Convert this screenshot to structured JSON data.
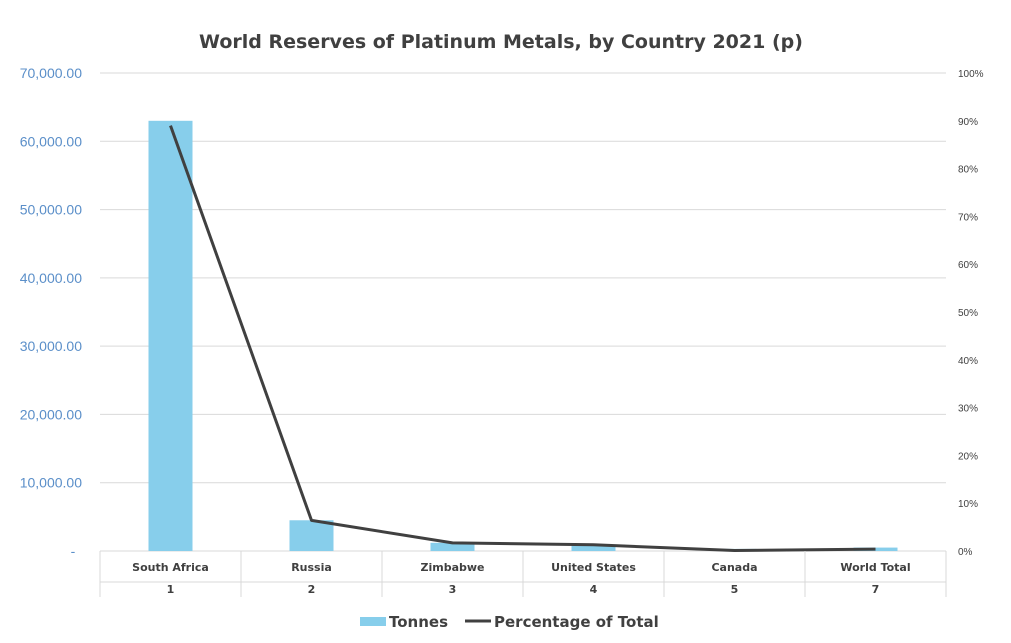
{
  "chart_data": {
    "type": "bar",
    "title": "World Reserves of Platinum Metals, by Country 2021 (p)",
    "categories": [
      "South Africa",
      "Russia",
      "Zimbabwe",
      "United States",
      "Canada",
      "World Total"
    ],
    "category_numbers": [
      "1",
      "2",
      "3",
      "4",
      "5",
      "7"
    ],
    "series": [
      {
        "name": "Tonnes",
        "type": "bar",
        "axis": "left",
        "color": "#87ceeb",
        "values": [
          63000,
          4500,
          1200,
          900,
          310,
          500
        ]
      },
      {
        "name": "Percentage of Total",
        "type": "line",
        "axis": "right",
        "color": "#404040",
        "values": [
          0.89,
          0.064,
          0.017,
          0.013,
          0.001,
          0.004
        ]
      }
    ],
    "y_left": {
      "ylim": [
        0,
        70000
      ],
      "ticks": [
        0,
        10000,
        20000,
        30000,
        40000,
        50000,
        60000,
        70000
      ],
      "tick_labels": [
        "-",
        "10,000.00",
        "20,000.00",
        "30,000.00",
        "40,000.00",
        "50,000.00",
        "60,000.00",
        "70,000.00"
      ]
    },
    "y_right": {
      "ylim": [
        0,
        1
      ],
      "ticks": [
        0,
        0.1,
        0.2,
        0.3,
        0.4,
        0.5,
        0.6,
        0.7,
        0.8,
        0.9,
        1.0
      ],
      "tick_labels": [
        "0%",
        "10%",
        "20%",
        "30%",
        "40%",
        "50%",
        "60%",
        "70%",
        "80%",
        "90%",
        "100%"
      ]
    },
    "grid": true,
    "legend": "bottom"
  }
}
